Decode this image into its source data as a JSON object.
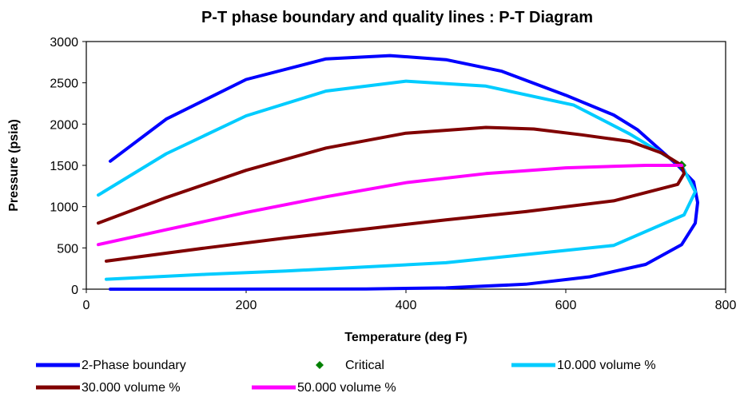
{
  "chart_data": {
    "type": "line",
    "title": "P-T phase boundary and quality lines : P-T Diagram",
    "xlabel": "Temperature (deg F)",
    "ylabel": "Pressure (psia)",
    "xlim": [
      0,
      800
    ],
    "ylim": [
      0,
      3000
    ],
    "xticks": [
      "0",
      "200",
      "400",
      "600",
      "800"
    ],
    "yticks": [
      "0",
      "500",
      "1000",
      "1500",
      "2000",
      "2500",
      "3000"
    ],
    "grid": false,
    "legend_position": "bottom",
    "series": [
      {
        "name": "2-Phase boundary",
        "color": "#0000FF",
        "style": "line",
        "x": [
          30,
          100,
          200,
          300,
          380,
          450,
          520,
          600,
          660,
          690,
          740,
          760,
          765,
          762,
          745,
          700,
          630,
          550,
          450,
          350,
          250,
          150,
          30
        ],
        "y": [
          1550,
          2060,
          2540,
          2790,
          2830,
          2780,
          2640,
          2350,
          2110,
          1930,
          1500,
          1300,
          1050,
          800,
          540,
          300,
          150,
          60,
          15,
          3,
          1,
          0,
          0
        ]
      },
      {
        "name": "Critical",
        "color": "#008000",
        "style": "marker",
        "x": [
          745
        ],
        "y": [
          1500
        ]
      },
      {
        "name": "10.000 volume %",
        "color": "#00CCFF",
        "style": "line",
        "x": [
          15,
          100,
          200,
          300,
          400,
          500,
          610,
          680,
          745,
          762,
          748,
          660,
          550,
          450,
          350,
          250,
          150,
          25
        ],
        "y": [
          1140,
          1640,
          2100,
          2400,
          2520,
          2460,
          2230,
          1880,
          1500,
          1180,
          900,
          530,
          420,
          320,
          270,
          220,
          180,
          120
        ]
      },
      {
        "name": "30.000 volume %",
        "color": "#800000",
        "style": "line",
        "x": [
          15,
          100,
          200,
          300,
          400,
          500,
          560,
          620,
          680,
          720,
          745,
          748,
          740,
          660,
          550,
          450,
          350,
          250,
          150,
          25
        ],
        "y": [
          800,
          1110,
          1440,
          1710,
          1890,
          1960,
          1940,
          1870,
          1790,
          1650,
          1500,
          1400,
          1270,
          1070,
          940,
          840,
          730,
          620,
          500,
          340
        ]
      },
      {
        "name": "50.000 volume %",
        "color": "#FF00FF",
        "style": "line",
        "x": [
          15,
          100,
          200,
          300,
          400,
          500,
          600,
          700,
          745
        ],
        "y": [
          540,
          720,
          930,
          1120,
          1290,
          1400,
          1470,
          1500,
          1500
        ]
      }
    ]
  }
}
